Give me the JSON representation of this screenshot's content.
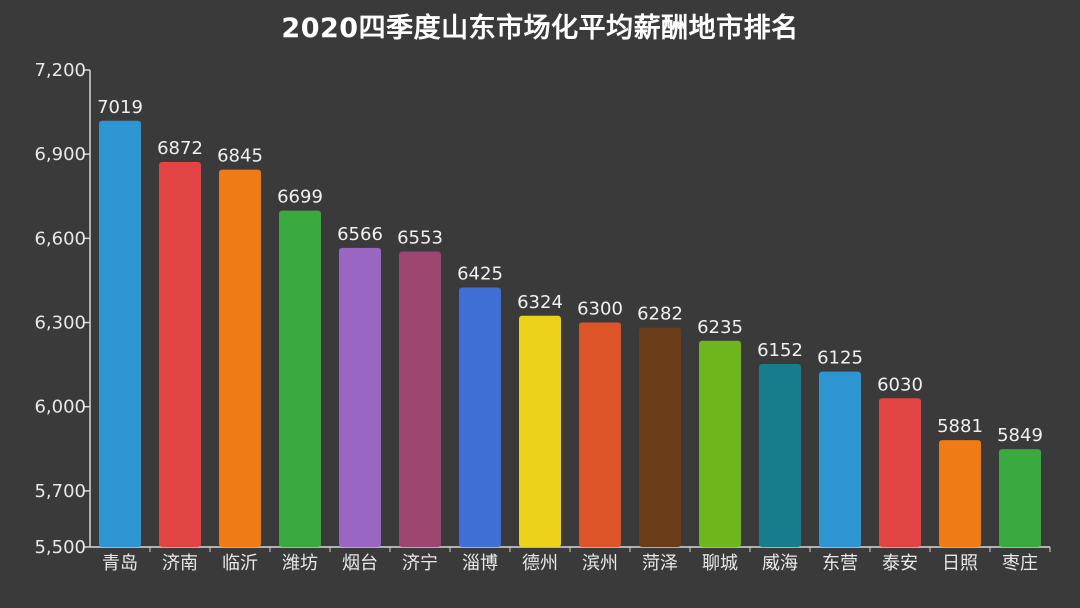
{
  "chart_data": {
    "type": "bar",
    "title": "2020四季度山东市场化平均薪酬地市排名",
    "xlabel": "",
    "ylabel": "",
    "categories": [
      "青岛",
      "济南",
      "临沂",
      "潍坊",
      "烟台",
      "济宁",
      "淄博",
      "德州",
      "滨州",
      "菏泽",
      "聊城",
      "威海",
      "东营",
      "泰安",
      "日照",
      "枣庄"
    ],
    "values": [
      7019,
      6872,
      6845,
      6699,
      6566,
      6553,
      6425,
      6324,
      6300,
      6282,
      6235,
      6152,
      6125,
      6030,
      5881,
      5849
    ],
    "colors": [
      "#2e95d3",
      "#e24444",
      "#ee7b16",
      "#3aaa40",
      "#9966c2",
      "#9c4670",
      "#3f6fd4",
      "#ecd21a",
      "#dc5428",
      "#6b3c18",
      "#6fb51e",
      "#177c8c",
      "#2e95d3",
      "#e24444",
      "#ee7b16",
      "#3aaa40"
    ],
    "ylim": [
      5500,
      7200
    ],
    "yticks": [
      5500,
      5700,
      6000,
      6300,
      6600,
      6900,
      7200
    ],
    "ytick_labels": [
      "5,500",
      "5,700",
      "6,000",
      "6,300",
      "6,600",
      "6,900",
      "7,200"
    ],
    "grid": false,
    "legend": "none",
    "background": "#3b3a3a",
    "axis_color": "#d8d8d8"
  }
}
